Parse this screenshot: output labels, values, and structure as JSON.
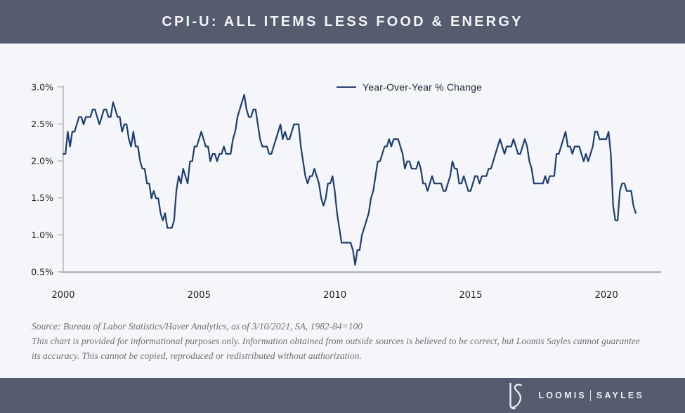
{
  "header": {
    "title": "CPI-U: ALL ITEMS LESS FOOD & ENERGY"
  },
  "legend": {
    "label": "Year-Over-Year % Change"
  },
  "footnote": {
    "source_line": "Source: Bureau of Labor Statistics/Haver Analytics, as of 3/10/2021, SA, 1982-84=100",
    "disclaimer_line1": "This chart is provided for informational purposes only. Information obtained from outside sources is believed to be correct,  but Loomis Sayles cannot guarantee",
    "disclaimer_line2": "its accuracy. This cannot be copied, reproduced or redistributed without authorization."
  },
  "footer": {
    "monogram": "LS",
    "brand_left": "LOOMIS",
    "brand_right": "SAYLES"
  },
  "colors": {
    "header_bar": "#555c6e",
    "page_background": "#f4f6f9",
    "line": "#1f3d73",
    "axis": "#b3b6c0",
    "footnote_text": "#707076"
  },
  "chart_data": {
    "type": "line",
    "title": "CPI-U: All Items Less Food & Energy",
    "xlabel": "",
    "ylabel": "Year-over-year % change",
    "ylim": [
      0.5,
      3.0
    ],
    "grid": false,
    "legend_position": "top-center",
    "y_tick_labels": [
      "3.0%",
      "2.5%",
      "2.0%",
      "1.5%",
      "1.0%",
      "0.5%"
    ],
    "x_tick_labels": [
      "2000",
      "2005",
      "2010",
      "2015",
      "2020"
    ],
    "x_start_year": 2000,
    "x_end": "2021-02",
    "frequency": "monthly",
    "series": [
      {
        "name": "Year-Over-Year % Change",
        "values": [
          2.1,
          2.1,
          2.4,
          2.2,
          2.4,
          2.4,
          2.5,
          2.6,
          2.6,
          2.5,
          2.6,
          2.6,
          2.6,
          2.7,
          2.7,
          2.6,
          2.5,
          2.6,
          2.7,
          2.7,
          2.6,
          2.6,
          2.8,
          2.7,
          2.6,
          2.6,
          2.4,
          2.5,
          2.5,
          2.3,
          2.2,
          2.4,
          2.2,
          2.2,
          2.0,
          1.9,
          1.9,
          1.7,
          1.7,
          1.5,
          1.6,
          1.5,
          1.5,
          1.3,
          1.2,
          1.3,
          1.1,
          1.1,
          1.1,
          1.2,
          1.6,
          1.8,
          1.7,
          1.9,
          1.8,
          1.7,
          2.0,
          2.0,
          2.2,
          2.2,
          2.3,
          2.4,
          2.3,
          2.2,
          2.2,
          2.0,
          2.1,
          2.1,
          2.0,
          2.1,
          2.1,
          2.2,
          2.1,
          2.1,
          2.1,
          2.3,
          2.4,
          2.6,
          2.7,
          2.8,
          2.9,
          2.7,
          2.6,
          2.6,
          2.7,
          2.7,
          2.5,
          2.3,
          2.2,
          2.2,
          2.2,
          2.1,
          2.1,
          2.2,
          2.3,
          2.4,
          2.5,
          2.3,
          2.4,
          2.3,
          2.3,
          2.4,
          2.5,
          2.5,
          2.5,
          2.2,
          2.0,
          1.8,
          1.7,
          1.8,
          1.8,
          1.9,
          1.8,
          1.7,
          1.5,
          1.4,
          1.5,
          1.7,
          1.7,
          1.8,
          1.6,
          1.3,
          1.1,
          0.9,
          0.9,
          0.9,
          0.9,
          0.9,
          0.8,
          0.6,
          0.8,
          0.8,
          1.0,
          1.1,
          1.2,
          1.3,
          1.5,
          1.6,
          1.8,
          2.0,
          2.0,
          2.1,
          2.2,
          2.2,
          2.3,
          2.2,
          2.3,
          2.3,
          2.3,
          2.2,
          2.1,
          1.9,
          2.0,
          2.0,
          1.9,
          1.9,
          1.9,
          2.0,
          1.9,
          1.7,
          1.7,
          1.6,
          1.7,
          1.8,
          1.7,
          1.7,
          1.7,
          1.7,
          1.6,
          1.6,
          1.7,
          1.8,
          2.0,
          1.9,
          1.9,
          1.7,
          1.7,
          1.8,
          1.7,
          1.6,
          1.6,
          1.7,
          1.8,
          1.8,
          1.7,
          1.8,
          1.8,
          1.8,
          1.9,
          1.9,
          2.0,
          2.1,
          2.2,
          2.3,
          2.2,
          2.1,
          2.2,
          2.2,
          2.2,
          2.3,
          2.2,
          2.1,
          2.1,
          2.2,
          2.3,
          2.2,
          2.0,
          1.9,
          1.7,
          1.7,
          1.7,
          1.7,
          1.7,
          1.8,
          1.7,
          1.8,
          1.8,
          1.8,
          2.1,
          2.1,
          2.2,
          2.3,
          2.4,
          2.2,
          2.2,
          2.1,
          2.2,
          2.2,
          2.2,
          2.1,
          2.0,
          2.1,
          2.0,
          2.1,
          2.2,
          2.4,
          2.4,
          2.3,
          2.3,
          2.3,
          2.3,
          2.4,
          2.1,
          1.4,
          1.2,
          1.2,
          1.6,
          1.7,
          1.7,
          1.6,
          1.6,
          1.6,
          1.4,
          1.3
        ]
      }
    ]
  }
}
